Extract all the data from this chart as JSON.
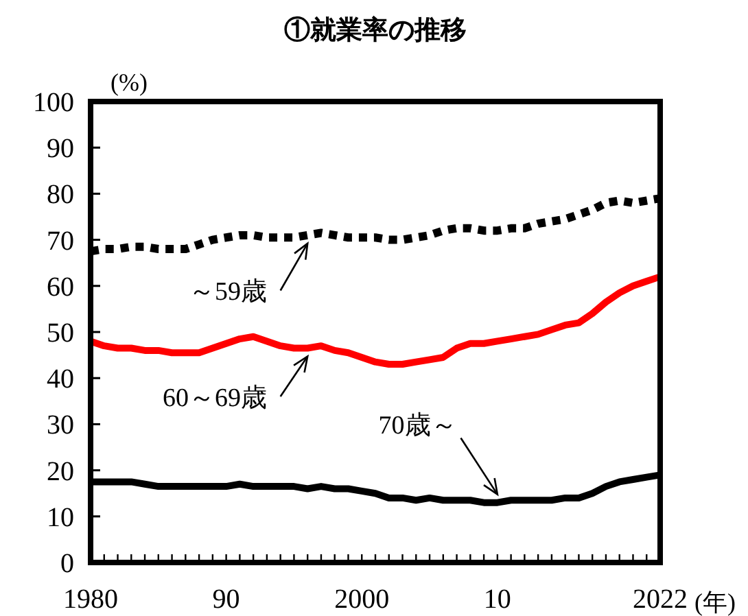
{
  "chart_data": {
    "type": "line",
    "title": "①就業率の推移",
    "ylabel": "(%)",
    "xlabel": "(年)",
    "x": [
      1980,
      1981,
      1982,
      1983,
      1984,
      1985,
      1986,
      1987,
      1988,
      1989,
      1990,
      1991,
      1992,
      1993,
      1994,
      1995,
      1996,
      1997,
      1998,
      1999,
      2000,
      2001,
      2002,
      2003,
      2004,
      2005,
      2006,
      2007,
      2008,
      2009,
      2010,
      2011,
      2012,
      2013,
      2014,
      2015,
      2016,
      2017,
      2018,
      2019,
      2020,
      2021,
      2022
    ],
    "series": [
      {
        "name": "～59歳",
        "color": "#000000",
        "line_style": "dotted",
        "values": [
          67.5,
          68,
          68,
          68.5,
          68.5,
          68,
          68,
          68,
          69,
          70,
          70.5,
          71,
          71,
          70.5,
          70.5,
          70.5,
          71,
          71.5,
          71,
          70.5,
          70.5,
          70.5,
          70,
          70,
          70.5,
          71,
          72,
          72.5,
          72.5,
          72,
          72,
          72.5,
          72.5,
          73.5,
          74,
          74.5,
          75.5,
          76.5,
          78,
          78.5,
          78,
          78.5,
          79
        ]
      },
      {
        "name": "60～69歳",
        "color": "#ff0000",
        "line_style": "solid",
        "values": [
          48,
          47,
          46.5,
          46.5,
          46,
          46,
          45.5,
          45.5,
          45.5,
          46.5,
          47.5,
          48.5,
          49,
          48,
          47,
          46.5,
          46.5,
          47,
          46,
          45.5,
          44.5,
          43.5,
          43,
          43,
          43.5,
          44,
          44.5,
          46.5,
          47.5,
          47.5,
          48,
          48.5,
          49,
          49.5,
          50.5,
          51.5,
          52,
          54,
          56.5,
          58.5,
          60,
          61,
          62
        ]
      },
      {
        "name": "70歳～",
        "color": "#000000",
        "line_style": "solid",
        "values": [
          17.5,
          17.5,
          17.5,
          17.5,
          17,
          16.5,
          16.5,
          16.5,
          16.5,
          16.5,
          16.5,
          17,
          16.5,
          16.5,
          16.5,
          16.5,
          16,
          16.5,
          16,
          16,
          15.5,
          15,
          14,
          14,
          13.5,
          14,
          13.5,
          13.5,
          13.5,
          13,
          13,
          13.5,
          13.5,
          13.5,
          13.5,
          14,
          14,
          15,
          16.5,
          17.5,
          18,
          18.5,
          19
        ]
      }
    ],
    "xlim": [
      1980,
      2022
    ],
    "ylim": [
      0,
      100
    ],
    "xticks": [
      1980,
      {
        "value": 1981,
        "label": null
      },
      {
        "value": 1982,
        "label": null
      },
      {
        "value": 1983,
        "label": null
      },
      {
        "value": 1984,
        "label": null
      },
      {
        "value": 1985,
        "label": null
      },
      {
        "value": 1986,
        "label": null
      },
      {
        "value": 1987,
        "label": null
      },
      {
        "value": 1988,
        "label": null
      },
      {
        "value": 1989,
        "label": null
      },
      {
        "value": 1990,
        "label": "90"
      },
      {
        "value": 1991,
        "label": null
      },
      {
        "value": 1992,
        "label": null
      },
      {
        "value": 1993,
        "label": null
      },
      {
        "value": 1994,
        "label": null
      },
      {
        "value": 1995,
        "label": null
      },
      {
        "value": 1996,
        "label": null
      },
      {
        "value": 1997,
        "label": null
      },
      {
        "value": 1998,
        "label": null
      },
      {
        "value": 1999,
        "label": null
      },
      2000,
      {
        "value": 2001,
        "label": null
      },
      {
        "value": 2002,
        "label": null
      },
      {
        "value": 2003,
        "label": null
      },
      {
        "value": 2004,
        "label": null
      },
      {
        "value": 2005,
        "label": null
      },
      {
        "value": 2006,
        "label": null
      },
      {
        "value": 2007,
        "label": null
      },
      {
        "value": 2008,
        "label": null
      },
      {
        "value": 2009,
        "label": null
      },
      {
        "value": 2010,
        "label": "10"
      },
      {
        "value": 2011,
        "label": null
      },
      {
        "value": 2012,
        "label": null
      },
      {
        "value": 2013,
        "label": null
      },
      {
        "value": 2014,
        "label": null
      },
      {
        "value": 2015,
        "label": null
      },
      {
        "value": 2016,
        "label": null
      },
      {
        "value": 2017,
        "label": null
      },
      {
        "value": 2018,
        "label": null
      },
      {
        "value": 2019,
        "label": null
      },
      {
        "value": 2020,
        "label": null
      },
      {
        "value": 2021,
        "label": null
      },
      2022
    ],
    "yticks": [
      0,
      10,
      20,
      30,
      40,
      50,
      60,
      70,
      80,
      90,
      100
    ],
    "grid": false,
    "marker": "none"
  }
}
